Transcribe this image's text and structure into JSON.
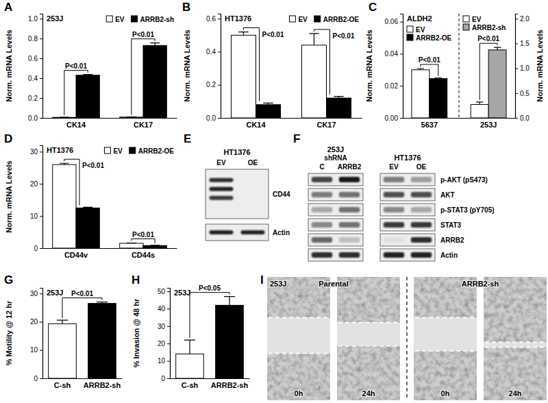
{
  "chart_data": [
    {
      "panel": "A",
      "type": "bar",
      "label": "253J",
      "y_label": "Norm. mRNA Levels",
      "categories": [
        "CK14",
        "CK17"
      ],
      "series": [
        {
          "name": "EV",
          "color": "#ffffff",
          "values": [
            0.005,
            0.008
          ],
          "errors": [
            0.001,
            0.001
          ]
        },
        {
          "name": "ARRB2-sh",
          "color": "#000000",
          "values": [
            0.43,
            0.73
          ],
          "errors": [
            0.008,
            0.025
          ]
        }
      ],
      "ylim": [
        0,
        1.05
      ],
      "yticks": [
        {
          "value": 0,
          "label": "0.0"
        },
        0.2,
        0.4,
        0.6,
        0.8,
        {
          "value": 1,
          "label": "1.0"
        }
      ],
      "legend": "upper right",
      "annotations": [
        {
          "text": "P<0.01",
          "category": "CK14"
        },
        {
          "text": "P<0.01",
          "category": "CK17"
        }
      ]
    },
    {
      "panel": "B",
      "type": "bar",
      "label": "HT1376",
      "y_label": "Norm. mRNA Levels",
      "categories": [
        "CK14",
        "CK17"
      ],
      "series": [
        {
          "name": "EV",
          "color": "#ffffff",
          "values": [
            0.5,
            0.44
          ],
          "errors": [
            0.02,
            0.07
          ]
        },
        {
          "name": "ARRB2-OE",
          "color": "#000000",
          "values": [
            0.08,
            0.12
          ],
          "errors": [
            0.01,
            0.01
          ]
        }
      ],
      "ylim": [
        0,
        0.63
      ],
      "yticks": [
        {
          "value": 0,
          "label": "0.0"
        },
        0.2,
        0.4,
        0.6
      ],
      "legend": "upper right",
      "annotations": [
        {
          "text": "P<0.01",
          "category": "CK14"
        },
        {
          "text": "P<0.01",
          "category": "CK17"
        }
      ]
    },
    {
      "panel": "C",
      "type": "bar",
      "label": "ALDH2",
      "y_label": "Norm. mRNA Levels",
      "y2_label": "Norm. mRNA Levels",
      "categories": [
        "5637",
        "253J"
      ],
      "series": [
        {
          "name": "EV",
          "color": "#ffffff",
          "values": [
            0.03,
            null
          ],
          "errors": [
            0.0008,
            null
          ]
        },
        {
          "name": "ARRB2-OE",
          "color": "#000000",
          "values": [
            0.0245,
            null
          ],
          "errors": [
            0.0004,
            null
          ]
        },
        {
          "name": "EV",
          "color": "#ffffff",
          "axis": "y2",
          "values": [
            null,
            0.27
          ],
          "errors": [
            null,
            0.05
          ]
        },
        {
          "name": "ARRB2-sh",
          "color": "#a6a6a6",
          "axis": "y2",
          "values": [
            null,
            1.37
          ],
          "errors": [
            null,
            0.05
          ]
        }
      ],
      "ylim": [
        0,
        0.065
      ],
      "yticks": [
        {
          "value": 0,
          "label": "0.00"
        },
        0.02,
        0.04,
        0.06
      ],
      "y2lim": [
        0,
        2.1
      ],
      "y2ticks": [
        {
          "value": 0,
          "label": "0.0"
        },
        0.5,
        {
          "value": 1,
          "label": "1.0"
        },
        1.5,
        {
          "value": 2,
          "label": "2.0"
        }
      ],
      "legend": "upper right",
      "annotations": [
        {
          "text": "P<0.01",
          "category": "5637"
        },
        {
          "text": "P<0.01",
          "category": "253J"
        }
      ]
    },
    {
      "panel": "D",
      "type": "bar",
      "label": "HT1376",
      "y_label": "Norm. mRNA Levels",
      "categories": [
        "CD44v",
        "CD44s"
      ],
      "series": [
        {
          "name": "EV",
          "color": "#ffffff",
          "values": [
            26,
            1.5
          ],
          "errors": [
            0.4,
            0.1
          ]
        },
        {
          "name": "ARRB2-OE",
          "color": "#000000",
          "values": [
            12.5,
            0.8
          ],
          "errors": [
            0.2,
            0.06
          ]
        }
      ],
      "ylim": [
        0,
        32
      ],
      "yticks": [
        0,
        10,
        20,
        30
      ],
      "legend": "upper right",
      "annotations": [
        {
          "text": "P<0.01",
          "category": "CD44v"
        },
        {
          "text": "P<0.01",
          "category": "CD44s"
        }
      ]
    },
    {
      "panel": "G",
      "type": "bar",
      "label": "253J",
      "y_label": "% Motility @ 12 hr",
      "categories": [
        "C-sh",
        "ARRB2-sh"
      ],
      "series": [
        {
          "colors": [
            "#ffffff",
            "#000000"
          ],
          "values": [
            19.3,
            26.5
          ],
          "errors": [
            1.3,
            0.5
          ]
        }
      ],
      "ylim": [
        0,
        32
      ],
      "yticks": [
        0,
        10,
        20,
        30
      ],
      "annotations": [
        {
          "text": "P<0.01"
        }
      ]
    },
    {
      "panel": "H",
      "type": "bar",
      "label": "253J",
      "y_label": "% Invasion @ 48 hr",
      "categories": [
        "C-sh",
        "ARRB2-sh"
      ],
      "series": [
        {
          "colors": [
            "#ffffff",
            "#000000"
          ],
          "values": [
            14,
            42
          ],
          "errors": [
            8,
            5
          ]
        }
      ],
      "ylim": [
        0,
        52
      ],
      "yticks": [
        0,
        10,
        20,
        30,
        40,
        50
      ],
      "annotations": [
        {
          "text": "P<0.05"
        }
      ]
    }
  ],
  "blots": [
    {
      "panel": "E",
      "groups": [
        {
          "label": "HT1376",
          "lanes": [
            "EV",
            "OE"
          ]
        }
      ],
      "rows": [
        "CD44",
        "Actin"
      ]
    },
    {
      "panel": "F",
      "groups": [
        {
          "label": "253J",
          "sublabel": "shRNA",
          "lanes": [
            "C",
            "ARRB2"
          ]
        },
        {
          "label": "HT1376",
          "lanes": [
            "EV",
            "OE"
          ]
        }
      ],
      "rows": [
        "p-AKT (pS473)",
        "AKT",
        "p-STAT3 (pY705)",
        "STAT3",
        "ARRB2",
        "Actin"
      ]
    }
  ],
  "images": {
    "panel": "I",
    "cell_line": "253J",
    "groups": [
      {
        "label": "Parental",
        "times": [
          "0h",
          "24h"
        ]
      },
      {
        "label": "ARRB2-sh",
        "times": [
          "0h",
          "24h"
        ]
      }
    ]
  }
}
